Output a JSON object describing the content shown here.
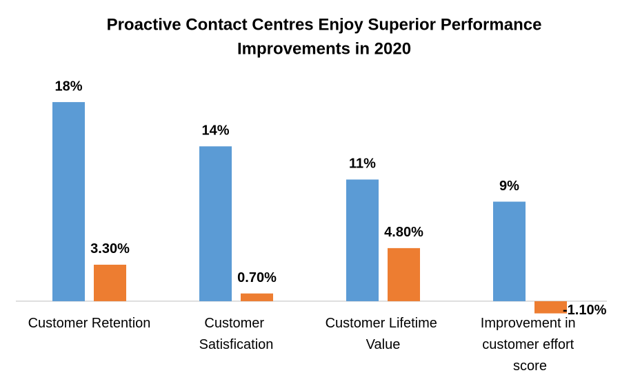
{
  "chart_data": {
    "type": "bar",
    "title": [
      "Proactive Contact Centres Enjoy Superior Performance",
      "Improvements in 2020"
    ],
    "categories": [
      "Customer Retention",
      "Customer Satisfication",
      "Customer Lifetime Value",
      "Improvement in customer effort score"
    ],
    "series": [
      {
        "color": "#5b9bd5",
        "values": [
          18,
          14,
          11,
          9
        ],
        "value_labels": [
          "18%",
          "14%",
          "11%",
          "9%"
        ]
      },
      {
        "color": "#ed7d31",
        "values": [
          3.3,
          0.7,
          4.8,
          -1.1
        ],
        "value_labels": [
          "3.30%",
          "0.70%",
          "4.80%",
          "-1.10%"
        ]
      }
    ],
    "ylim": [
      -2,
      20
    ]
  }
}
